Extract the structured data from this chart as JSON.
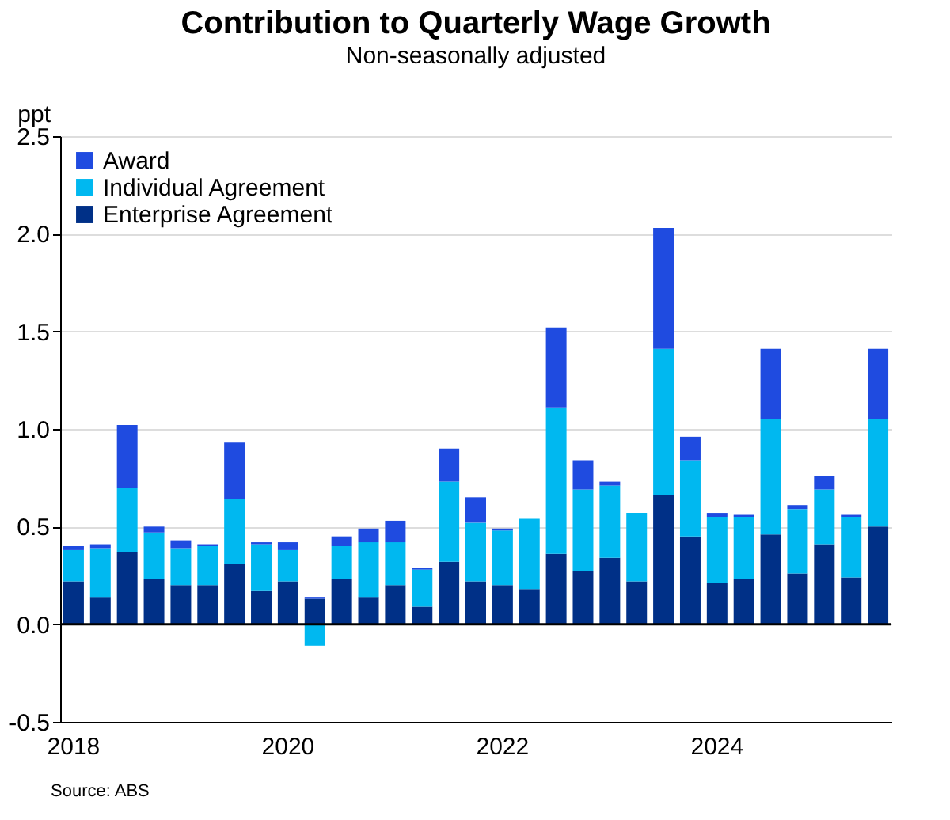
{
  "chart_data": {
    "type": "bar",
    "title": "Contribution to Quarterly Wage Growth",
    "subtitle": "Non-seasonally adjusted",
    "ylabel": "ppt",
    "stacked": true,
    "categories": [
      "2018",
      null,
      null,
      null,
      null,
      null,
      null,
      null,
      "2020",
      null,
      null,
      null,
      null,
      null,
      null,
      null,
      "2022",
      null,
      null,
      null,
      null,
      null,
      null,
      null,
      "2024",
      null,
      null,
      null,
      null,
      null,
      null
    ],
    "series": [
      {
        "name": "Enterprise Agreement",
        "color": "#003087",
        "values": [
          0.22,
          0.14,
          0.37,
          0.23,
          0.2,
          0.2,
          0.31,
          0.17,
          0.22,
          0.13,
          0.23,
          0.14,
          0.2,
          0.09,
          0.32,
          0.22,
          0.2,
          0.18,
          0.36,
          0.27,
          0.34,
          0.22,
          0.66,
          0.45,
          0.21,
          0.23,
          0.46,
          0.26,
          0.41,
          0.24,
          0.5
        ]
      },
      {
        "name": "Individual Agreement",
        "color": "#00b8f0",
        "values": [
          0.16,
          0.25,
          0.33,
          0.24,
          0.19,
          0.2,
          0.33,
          0.24,
          0.16,
          -0.11,
          0.17,
          0.28,
          0.22,
          0.19,
          0.41,
          0.3,
          0.28,
          0.36,
          0.75,
          0.42,
          0.37,
          0.35,
          0.75,
          0.39,
          0.34,
          0.32,
          0.59,
          0.33,
          0.28,
          0.31,
          0.55
        ]
      },
      {
        "name": "Award",
        "color": "#1f4be0",
        "values": [
          0.02,
          0.02,
          0.32,
          0.03,
          0.04,
          0.01,
          0.29,
          0.01,
          0.04,
          0.01,
          0.05,
          0.07,
          0.11,
          0.01,
          0.17,
          0.13,
          0.01,
          0,
          0.41,
          0.15,
          0.02,
          0,
          0.62,
          0.12,
          0.02,
          0.01,
          0.36,
          0.02,
          0.07,
          0.01,
          0.36
        ]
      }
    ],
    "ylim": [
      -0.5,
      2.5
    ],
    "yticks": [
      -0.5,
      {
        "value": 0,
        "label": "0.0"
      },
      0.5,
      {
        "value": 1,
        "label": "1.0"
      },
      1.5,
      {
        "value": 2,
        "label": "2.0"
      },
      2.5
    ],
    "ref_lines": [
      {
        "axis": "y",
        "value": 0,
        "color": "#000000"
      }
    ],
    "grid": "y",
    "legend": "top left",
    "annotations": [
      "Source: ABS"
    ]
  }
}
